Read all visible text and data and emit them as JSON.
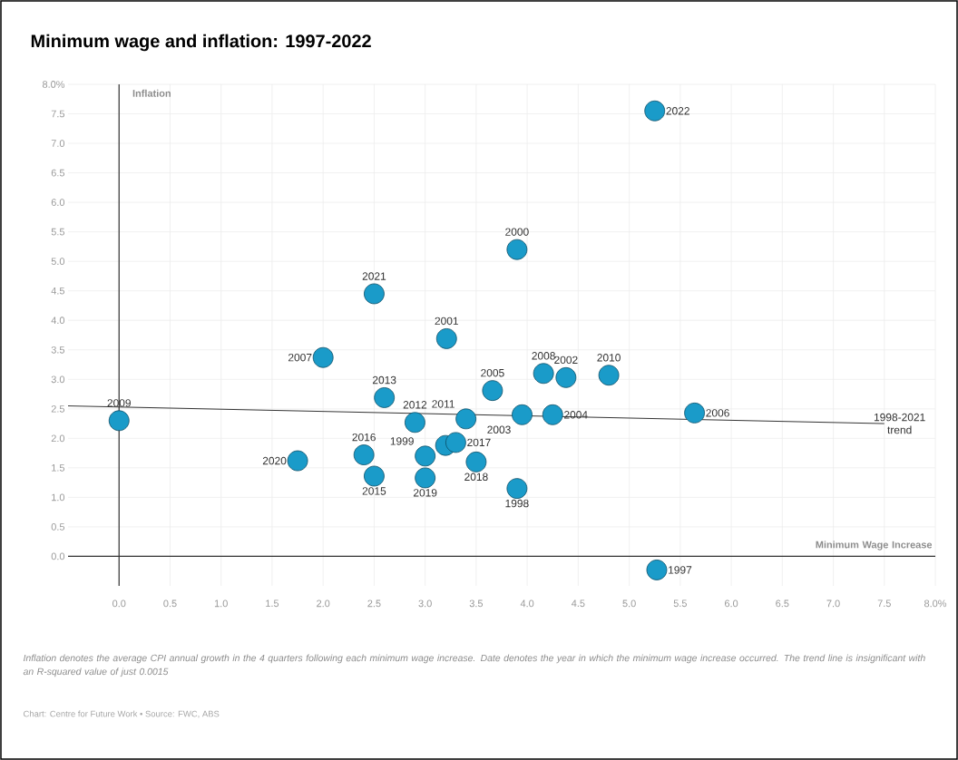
{
  "chart_data": {
    "type": "scatter",
    "title": "Minimum wage and inflation: 1997-2022",
    "xlabel": "Minimum Wage Increase",
    "ylabel": "Inflation",
    "xlim": [
      -0.5,
      8
    ],
    "ylim": [
      -0.5,
      8
    ],
    "xticks": [
      {
        "value": 0,
        "label": "0.0"
      },
      0.5,
      {
        "value": 1,
        "label": "1.0"
      },
      1.5,
      {
        "value": 2,
        "label": "2.0"
      },
      2.5,
      {
        "value": 3,
        "label": "3.0"
      },
      3.5,
      {
        "value": 4,
        "label": "4.0"
      },
      4.5,
      {
        "value": 5,
        "label": "5.0"
      },
      5.5,
      {
        "value": 6,
        "label": "6.0"
      },
      6.5,
      {
        "value": 7,
        "label": "7.0"
      },
      7.5,
      {
        "value": 8,
        "label": "8.0%"
      }
    ],
    "yticks": [
      {
        "value": 0,
        "label": "0.0"
      },
      0.5,
      {
        "value": 1,
        "label": "1.0"
      },
      1.5,
      {
        "value": 2,
        "label": "2.0"
      },
      2.5,
      {
        "value": 3,
        "label": "3.0"
      },
      3.5,
      {
        "value": 4,
        "label": "4.0"
      },
      4.5,
      {
        "value": 5,
        "label": "5.0"
      },
      5.5,
      {
        "value": 6,
        "label": "6.0"
      },
      6.5,
      {
        "value": 7,
        "label": "7.0"
      },
      7.5,
      {
        "value": 8,
        "label": "8.0%"
      }
    ],
    "grid": true,
    "series": [
      {
        "type": "scatter",
        "marker": "circle",
        "color": "#1a9bc9",
        "x": [
          5.27,
          3.9,
          3.0,
          3.9,
          3.21,
          4.38,
          3.95,
          4.25,
          3.66,
          5.64,
          2.0,
          4.16,
          0.0,
          4.8,
          3.4,
          2.9,
          2.6,
          3.2,
          2.5,
          2.4,
          3.3,
          3.5,
          3.0,
          1.75,
          2.5,
          5.25
        ],
        "values": [
          -0.23,
          1.15,
          1.7,
          5.2,
          3.69,
          3.03,
          2.4,
          2.4,
          2.81,
          2.43,
          3.37,
          3.1,
          2.3,
          3.07,
          2.33,
          2.27,
          2.69,
          1.88,
          1.36,
          1.72,
          1.93,
          1.6,
          1.33,
          1.62,
          4.45,
          7.55
        ]
      },
      {
        "type": "line",
        "name": "1998-2021 trend",
        "color": "#333333",
        "x": [
          -0.5,
          7.5
        ],
        "values": [
          2.55,
          2.25
        ]
      }
    ],
    "annotations": [
      {
        "text": "1997",
        "x": 5.27,
        "y": -0.23
      },
      {
        "text": "1998",
        "x": 3.9,
        "y": 1.15
      },
      {
        "text": "1999",
        "x": 3.0,
        "y": 1.7
      },
      {
        "text": "2000",
        "x": 3.9,
        "y": 5.2
      },
      {
        "text": "2001",
        "x": 3.21,
        "y": 3.69
      },
      {
        "text": "2002",
        "x": 4.38,
        "y": 3.03
      },
      {
        "text": "2003",
        "x": 3.95,
        "y": 2.4
      },
      {
        "text": "2004",
        "x": 4.25,
        "y": 2.4
      },
      {
        "text": "2005",
        "x": 3.66,
        "y": 2.81
      },
      {
        "text": "2006",
        "x": 5.64,
        "y": 2.43
      },
      {
        "text": "2007",
        "x": 2.0,
        "y": 3.37
      },
      {
        "text": "2008",
        "x": 4.16,
        "y": 3.1
      },
      {
        "text": "2009",
        "x": 0.0,
        "y": 2.3
      },
      {
        "text": "2010",
        "x": 4.8,
        "y": 3.07
      },
      {
        "text": "2011",
        "x": 3.4,
        "y": 2.33
      },
      {
        "text": "2012",
        "x": 2.9,
        "y": 2.27
      },
      {
        "text": "2013",
        "x": 2.6,
        "y": 2.69
      },
      {
        "text": "2015",
        "x": 2.5,
        "y": 1.36
      },
      {
        "text": "2016",
        "x": 2.4,
        "y": 1.72
      },
      {
        "text": "2017",
        "x": 3.3,
        "y": 1.93
      },
      {
        "text": "2018",
        "x": 3.5,
        "y": 1.6
      },
      {
        "text": "2019",
        "x": 3.0,
        "y": 1.33
      },
      {
        "text": "2020",
        "x": 1.75,
        "y": 1.62
      },
      {
        "text": "2021",
        "x": 2.5,
        "y": 4.45
      },
      {
        "text": "2022",
        "x": 5.25,
        "y": 7.55
      },
      "Inflation denotes the average CPI annual growth in the 4 quarters following each minimum wage increase. Date denotes the year in which the minimum wage increase occurred. The trend line is insignificant with an R-squared value of just 0.0015",
      "Chart: Centre for Future Work • Source: FWC, ABS"
    ]
  }
}
